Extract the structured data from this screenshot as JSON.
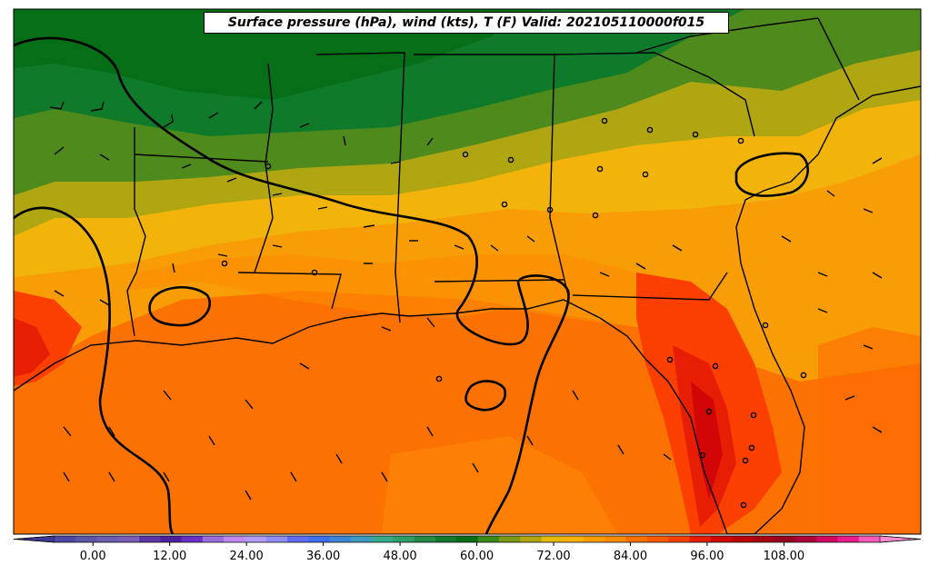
{
  "title": "Surface pressure (hPa), wind (kts), T (F) Valid: 202105110000f015",
  "colorbar": {
    "tick_labels": [
      "0.00",
      "12.00",
      "24.00",
      "36.00",
      "48.00",
      "60.00",
      "72.00",
      "84.00",
      "96.00",
      "108.00"
    ],
    "min": -6,
    "max": 123,
    "colors": [
      "#3d3a97",
      "#4e47a6",
      "#5c56a8",
      "#6a5fb0",
      "#7b5fbb",
      "#5d36a5",
      "#4c1f9e",
      "#6a30c8",
      "#9b6ee0",
      "#c28af0",
      "#b29ef5",
      "#8f8ff5",
      "#5f6ef5",
      "#3f6ff0",
      "#3d86d8",
      "#3e9ac0",
      "#3aa88c",
      "#2f9e68",
      "#228a45",
      "#12782e",
      "#066e17",
      "#3b8a1c",
      "#7a9a16",
      "#b0a612",
      "#e6b80c",
      "#f7b20a",
      "#f89d06",
      "#fb8a04",
      "#fc7202",
      "#fd5a01",
      "#fb3f01",
      "#e71e04",
      "#d20606",
      "#bd0009",
      "#a80012",
      "#98001f",
      "#b0003a",
      "#d30861",
      "#ec1a8a",
      "#f75aba",
      "#ff8ad2"
    ]
  }
}
